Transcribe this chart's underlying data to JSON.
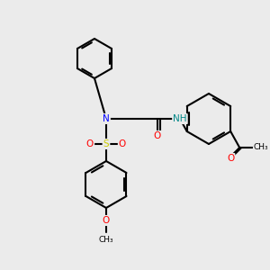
{
  "bg_color": "#ebebeb",
  "bond_color": "#000000",
  "bond_lw": 1.5,
  "atom_colors": {
    "N": "#0000FF",
    "O": "#FF0000",
    "S": "#cccc00",
    "NH": "#008888",
    "C": "#000000"
  },
  "font_size": 7.5,
  "font_size_small": 6.5
}
